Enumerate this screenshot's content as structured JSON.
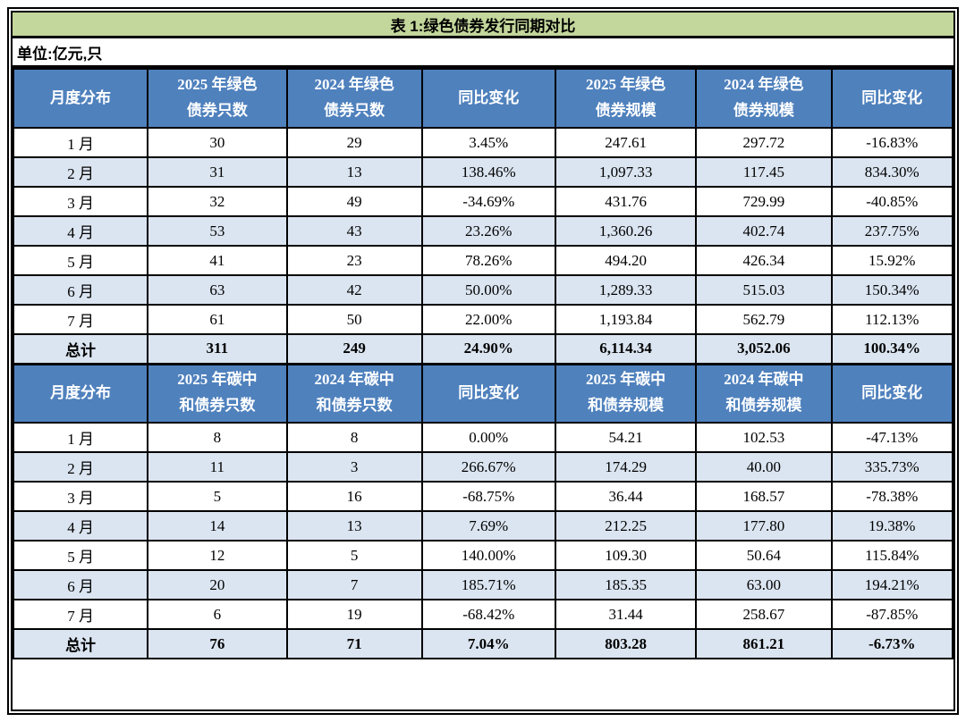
{
  "title": "表 1:绿色债券发行同期对比",
  "unit_note": "单位:亿元,只",
  "colors": {
    "title_bg": "#c3d69b",
    "header_bg": "#4f81bd",
    "header_text": "#ffffff",
    "row_alt_bg": "#dbe5f1",
    "row_bg": "#ffffff",
    "border": "#000000",
    "text": "#000000"
  },
  "tables": [
    {
      "name": "green-bonds",
      "headers": [
        "月度分布",
        "2025 年绿色\n债券只数",
        "2024 年绿色\n债券只数",
        "同比变化",
        "2025 年绿色\n债券规模",
        "2024 年绿色\n债券规模",
        "同比变化"
      ],
      "rows": [
        [
          "1 月",
          "30",
          "29",
          "3.45%",
          "247.61",
          "297.72",
          "-16.83%"
        ],
        [
          "2 月",
          "31",
          "13",
          "138.46%",
          "1,097.33",
          "117.45",
          "834.30%"
        ],
        [
          "3 月",
          "32",
          "49",
          "-34.69%",
          "431.76",
          "729.99",
          "-40.85%"
        ],
        [
          "4 月",
          "53",
          "43",
          "23.26%",
          "1,360.26",
          "402.74",
          "237.75%"
        ],
        [
          "5 月",
          "41",
          "23",
          "78.26%",
          "494.20",
          "426.34",
          "15.92%"
        ],
        [
          "6 月",
          "63",
          "42",
          "50.00%",
          "1,289.33",
          "515.03",
          "150.34%"
        ],
        [
          "7 月",
          "61",
          "50",
          "22.00%",
          "1,193.84",
          "562.79",
          "112.13%"
        ]
      ],
      "total_row": [
        "总计",
        "311",
        "249",
        "24.90%",
        "6,114.34",
        "3,052.06",
        "100.34%"
      ]
    },
    {
      "name": "carbon-neutral-bonds",
      "headers": [
        "月度分布",
        "2025 年碳中\n和债券只数",
        "2024 年碳中\n和债券只数",
        "同比变化",
        "2025 年碳中\n和债券规模",
        "2024 年碳中\n和债券规模",
        "同比变化"
      ],
      "rows": [
        [
          "1 月",
          "8",
          "8",
          "0.00%",
          "54.21",
          "102.53",
          "-47.13%"
        ],
        [
          "2 月",
          "11",
          "3",
          "266.67%",
          "174.29",
          "40.00",
          "335.73%"
        ],
        [
          "3 月",
          "5",
          "16",
          "-68.75%",
          "36.44",
          "168.57",
          "-78.38%"
        ],
        [
          "4 月",
          "14",
          "13",
          "7.69%",
          "212.25",
          "177.80",
          "19.38%"
        ],
        [
          "5 月",
          "12",
          "5",
          "140.00%",
          "109.30",
          "50.64",
          "115.84%"
        ],
        [
          "6 月",
          "20",
          "7",
          "185.71%",
          "185.35",
          "63.00",
          "194.21%"
        ],
        [
          "7 月",
          "6",
          "19",
          "-68.42%",
          "31.44",
          "258.67",
          "-87.85%"
        ]
      ],
      "total_row": [
        "总计",
        "76",
        "71",
        "7.04%",
        "803.28",
        "861.21",
        "-6.73%"
      ]
    }
  ]
}
